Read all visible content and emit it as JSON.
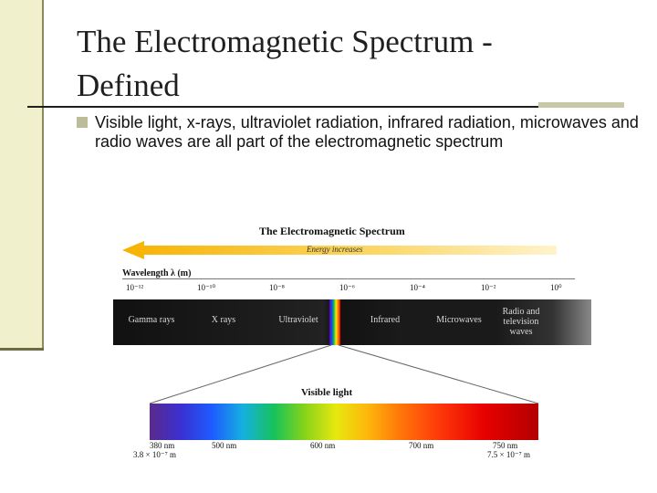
{
  "slide": {
    "title": "The Electromagnetic Spectrum -\nDefined",
    "bullet": "Visible light, x-rays, ultraviolet radiation, infrared radiation, microwaves and radio waves are all part of the electromagnetic spectrum"
  },
  "figure": {
    "title": "The Electromagnetic Spectrum",
    "energy_label": "Energy increases",
    "wavelength_label": "Wavelength λ (m)",
    "ticks": [
      "10⁻¹²",
      "10⁻¹⁰",
      "10⁻⁸",
      "10⁻⁶",
      "10⁻⁴",
      "10⁻²",
      "10⁰"
    ],
    "bands": [
      "Gamma rays",
      "X rays",
      "Ultraviolet",
      "Infrared",
      "Microwaves",
      "Radio and television waves"
    ],
    "visible_label": "Visible light",
    "visible_ticks": [
      "380 nm",
      "500 nm",
      "600 nm",
      "700 nm",
      "750 nm"
    ],
    "visible_sub_left": "3.8 × 10⁻⁷ m",
    "visible_sub_right": "7.5 × 10⁻⁷ m"
  }
}
